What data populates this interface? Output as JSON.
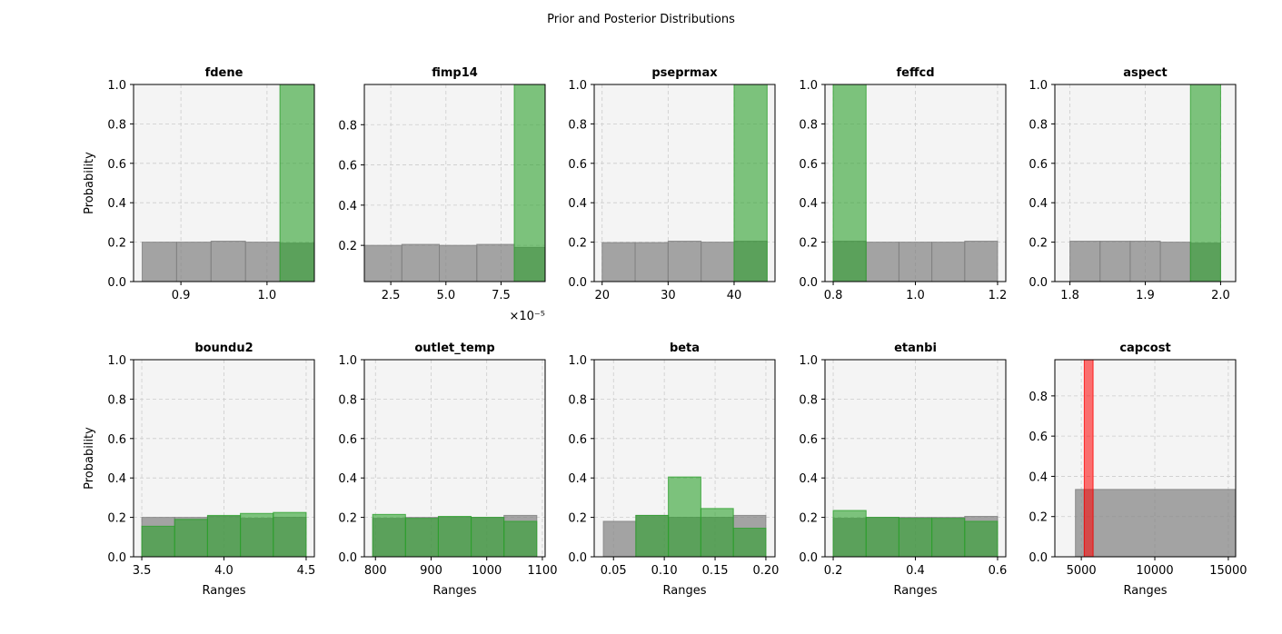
{
  "figure": {
    "title": "Prior and Posterior Distributions"
  },
  "colors": {
    "prior": "#808080",
    "posterior": "#2ca02c",
    "highlight": "#ff0000",
    "panel_bg": "#f4f4f4",
    "grid": "#cccccc"
  },
  "chart_data": [
    {
      "type": "bar",
      "title": "fdene",
      "ylabel": "Probability",
      "xlabel": "",
      "xlim": [
        0.845,
        1.055
      ],
      "ylim": [
        0,
        1
      ],
      "grid": true,
      "xticks": [
        {
          "v": 0.9,
          "l": "0.9"
        },
        {
          "v": 1.0,
          "l": "1.0"
        }
      ],
      "yticks": [
        {
          "v": 0,
          "l": "0.0"
        },
        {
          "v": 0.2,
          "l": "0.2"
        },
        {
          "v": 0.4,
          "l": "0.4"
        },
        {
          "v": 0.6,
          "l": "0.6"
        },
        {
          "v": 0.8,
          "l": "0.8"
        },
        {
          "v": 1.0,
          "l": "1.0"
        }
      ],
      "bin_edges": [
        0.855,
        0.895,
        0.935,
        0.975,
        1.015,
        1.055
      ],
      "series": [
        {
          "role": "prior",
          "values": [
            0.2,
            0.2,
            0.205,
            0.2,
            0.195
          ]
        },
        {
          "role": "posterior",
          "values": [
            0,
            0,
            0,
            0,
            1.0
          ]
        }
      ]
    },
    {
      "type": "bar",
      "title": "fimp14",
      "ylabel": "",
      "xlabel": "",
      "offset_text": "×10⁻⁵",
      "xlim": [
        1.3,
        9.5
      ],
      "ylim": [
        0.02,
        1.0
      ],
      "grid": true,
      "xticks": [
        {
          "v": 2.5,
          "l": "2.5"
        },
        {
          "v": 5.0,
          "l": "5.0"
        },
        {
          "v": 7.5,
          "l": "7.5"
        }
      ],
      "yticks": [
        {
          "v": 0.2,
          "l": "0.2"
        },
        {
          "v": 0.4,
          "l": "0.4"
        },
        {
          "v": 0.6,
          "l": "0.6"
        },
        {
          "v": 0.8,
          "l": "0.8"
        }
      ],
      "bin_edges": [
        1.3,
        3.0,
        4.7,
        6.4,
        8.1,
        9.5
      ],
      "series": [
        {
          "role": "prior",
          "values": [
            0.2,
            0.205,
            0.2,
            0.205,
            0.19
          ]
        },
        {
          "role": "posterior",
          "values": [
            0,
            0,
            0,
            0,
            1.0
          ]
        }
      ]
    },
    {
      "type": "bar",
      "title": "pseprmax",
      "ylabel": "",
      "xlabel": "",
      "xlim": [
        18.8,
        46.2
      ],
      "ylim": [
        0,
        1
      ],
      "grid": true,
      "xticks": [
        {
          "v": 20,
          "l": "20"
        },
        {
          "v": 30,
          "l": "30"
        },
        {
          "v": 40,
          "l": "40"
        }
      ],
      "yticks": [
        {
          "v": 0,
          "l": "0.0"
        },
        {
          "v": 0.2,
          "l": "0.2"
        },
        {
          "v": 0.4,
          "l": "0.4"
        },
        {
          "v": 0.6,
          "l": "0.6"
        },
        {
          "v": 0.8,
          "l": "0.8"
        },
        {
          "v": 1.0,
          "l": "1.0"
        }
      ],
      "bin_edges": [
        20,
        25,
        30,
        35,
        40,
        45
      ],
      "series": [
        {
          "role": "prior",
          "values": [
            0.198,
            0.198,
            0.205,
            0.2,
            0.205
          ]
        },
        {
          "role": "posterior",
          "values": [
            0,
            0,
            0,
            0,
            1.0
          ]
        }
      ]
    },
    {
      "type": "bar",
      "title": "feffcd",
      "ylabel": "",
      "xlabel": "",
      "xlim": [
        0.78,
        1.22
      ],
      "ylim": [
        0,
        1
      ],
      "grid": true,
      "xticks": [
        {
          "v": 0.8,
          "l": "0.8"
        },
        {
          "v": 1.0,
          "l": "1.0"
        },
        {
          "v": 1.2,
          "l": "1.2"
        }
      ],
      "yticks": [
        {
          "v": 0,
          "l": "0.0"
        },
        {
          "v": 0.2,
          "l": "0.2"
        },
        {
          "v": 0.4,
          "l": "0.4"
        },
        {
          "v": 0.6,
          "l": "0.6"
        },
        {
          "v": 0.8,
          "l": "0.8"
        },
        {
          "v": 1.0,
          "l": "1.0"
        }
      ],
      "bin_edges": [
        0.8,
        0.88,
        0.96,
        1.04,
        1.12,
        1.2
      ],
      "series": [
        {
          "role": "prior",
          "values": [
            0.205,
            0.2,
            0.2,
            0.2,
            0.205
          ]
        },
        {
          "role": "posterior",
          "values": [
            1.0,
            0,
            0,
            0,
            0
          ]
        }
      ]
    },
    {
      "type": "bar",
      "title": "aspect",
      "ylabel": "",
      "xlabel": "",
      "xlim": [
        1.78,
        2.02
      ],
      "ylim": [
        0,
        1
      ],
      "grid": true,
      "xticks": [
        {
          "v": 1.8,
          "l": "1.8"
        },
        {
          "v": 1.9,
          "l": "1.9"
        },
        {
          "v": 2.0,
          "l": "2.0"
        }
      ],
      "yticks": [
        {
          "v": 0,
          "l": "0.0"
        },
        {
          "v": 0.2,
          "l": "0.2"
        },
        {
          "v": 0.4,
          "l": "0.4"
        },
        {
          "v": 0.6,
          "l": "0.6"
        },
        {
          "v": 0.8,
          "l": "0.8"
        },
        {
          "v": 1.0,
          "l": "1.0"
        }
      ],
      "bin_edges": [
        1.8,
        1.84,
        1.88,
        1.92,
        1.96,
        2.0
      ],
      "series": [
        {
          "role": "prior",
          "values": [
            0.205,
            0.205,
            0.205,
            0.2,
            0.195
          ]
        },
        {
          "role": "posterior",
          "values": [
            0,
            0,
            0,
            0,
            1.0
          ]
        }
      ]
    },
    {
      "type": "bar",
      "title": "boundu2",
      "ylabel": "Probability",
      "xlabel": "Ranges",
      "xlim": [
        3.45,
        4.55
      ],
      "ylim": [
        0,
        1
      ],
      "grid": true,
      "xticks": [
        {
          "v": 3.5,
          "l": "3.5"
        },
        {
          "v": 4.0,
          "l": "4.0"
        },
        {
          "v": 4.5,
          "l": "4.5"
        }
      ],
      "yticks": [
        {
          "v": 0,
          "l": "0.0"
        },
        {
          "v": 0.2,
          "l": "0.2"
        },
        {
          "v": 0.4,
          "l": "0.4"
        },
        {
          "v": 0.6,
          "l": "0.6"
        },
        {
          "v": 0.8,
          "l": "0.8"
        },
        {
          "v": 1.0,
          "l": "1.0"
        }
      ],
      "bin_edges": [
        3.5,
        3.7,
        3.9,
        4.1,
        4.3,
        4.5
      ],
      "series": [
        {
          "role": "prior",
          "values": [
            0.2,
            0.2,
            0.205,
            0.195,
            0.2
          ]
        },
        {
          "role": "posterior",
          "values": [
            0.155,
            0.19,
            0.21,
            0.22,
            0.225
          ]
        }
      ]
    },
    {
      "type": "bar",
      "title": "outlet_temp",
      "ylabel": "",
      "xlabel": "Ranges",
      "xlim": [
        780,
        1105
      ],
      "ylim": [
        0,
        1
      ],
      "grid": true,
      "xticks": [
        {
          "v": 800,
          "l": "800"
        },
        {
          "v": 900,
          "l": "900"
        },
        {
          "v": 1000,
          "l": "1000"
        },
        {
          "v": 1100,
          "l": "1100"
        }
      ],
      "yticks": [
        {
          "v": 0,
          "l": "0.0"
        },
        {
          "v": 0.2,
          "l": "0.2"
        },
        {
          "v": 0.4,
          "l": "0.4"
        },
        {
          "v": 0.6,
          "l": "0.6"
        },
        {
          "v": 0.8,
          "l": "0.8"
        },
        {
          "v": 1.0,
          "l": "1.0"
        }
      ],
      "bin_edges": [
        795,
        854,
        913,
        972,
        1031,
        1090
      ],
      "series": [
        {
          "role": "prior",
          "values": [
            0.195,
            0.2,
            0.2,
            0.2,
            0.21
          ]
        },
        {
          "role": "posterior",
          "values": [
            0.215,
            0.195,
            0.205,
            0.2,
            0.18
          ]
        }
      ]
    },
    {
      "type": "bar",
      "title": "beta",
      "ylabel": "",
      "xlabel": "Ranges",
      "xlim": [
        0.031,
        0.209
      ],
      "ylim": [
        0,
        1
      ],
      "grid": true,
      "xticks": [
        {
          "v": 0.05,
          "l": "0.05"
        },
        {
          "v": 0.1,
          "l": "0.10"
        },
        {
          "v": 0.15,
          "l": "0.15"
        },
        {
          "v": 0.2,
          "l": "0.20"
        }
      ],
      "yticks": [
        {
          "v": 0,
          "l": "0.0"
        },
        {
          "v": 0.2,
          "l": "0.2"
        },
        {
          "v": 0.4,
          "l": "0.4"
        },
        {
          "v": 0.6,
          "l": "0.6"
        },
        {
          "v": 0.8,
          "l": "0.8"
        },
        {
          "v": 1.0,
          "l": "1.0"
        }
      ],
      "bin_edges": [
        0.04,
        0.072,
        0.104,
        0.136,
        0.168,
        0.2
      ],
      "series": [
        {
          "role": "prior",
          "values": [
            0.18,
            0.21,
            0.2,
            0.2,
            0.21
          ]
        },
        {
          "role": "posterior",
          "values": [
            0,
            0.21,
            0.405,
            0.245,
            0.145
          ]
        }
      ]
    },
    {
      "type": "bar",
      "title": "etanbi",
      "ylabel": "",
      "xlabel": "Ranges",
      "xlim": [
        0.18,
        0.62
      ],
      "ylim": [
        0,
        1
      ],
      "grid": true,
      "xticks": [
        {
          "v": 0.2,
          "l": "0.2"
        },
        {
          "v": 0.4,
          "l": "0.4"
        },
        {
          "v": 0.6,
          "l": "0.6"
        }
      ],
      "yticks": [
        {
          "v": 0,
          "l": "0.0"
        },
        {
          "v": 0.2,
          "l": "0.2"
        },
        {
          "v": 0.4,
          "l": "0.4"
        },
        {
          "v": 0.6,
          "l": "0.6"
        },
        {
          "v": 0.8,
          "l": "0.8"
        },
        {
          "v": 1.0,
          "l": "1.0"
        }
      ],
      "bin_edges": [
        0.2,
        0.28,
        0.36,
        0.44,
        0.52,
        0.6
      ],
      "series": [
        {
          "role": "prior",
          "values": [
            0.195,
            0.2,
            0.2,
            0.2,
            0.205
          ]
        },
        {
          "role": "posterior",
          "values": [
            0.235,
            0.2,
            0.195,
            0.195,
            0.18
          ]
        }
      ]
    },
    {
      "type": "bar",
      "title": "capcost",
      "ylabel": "",
      "xlabel": "Ranges",
      "xlim": [
        3200,
        15500
      ],
      "ylim": [
        0,
        0.98
      ],
      "grid": true,
      "xticks": [
        {
          "v": 5000,
          "l": "5000"
        },
        {
          "v": 10000,
          "l": "10000"
        },
        {
          "v": 15000,
          "l": "15000"
        }
      ],
      "yticks": [
        {
          "v": 0,
          "l": "0.0"
        },
        {
          "v": 0.2,
          "l": "0.2"
        },
        {
          "v": 0.4,
          "l": "0.4"
        },
        {
          "v": 0.6,
          "l": "0.6"
        },
        {
          "v": 0.8,
          "l": "0.8"
        }
      ],
      "bin_edges": [
        4600,
        5200,
        5800,
        15500
      ],
      "series": [
        {
          "role": "prior",
          "values": [
            0.335,
            0.335,
            0.335
          ]
        },
        {
          "role": "highlight",
          "values": [
            0,
            1.0,
            0
          ]
        }
      ]
    }
  ]
}
